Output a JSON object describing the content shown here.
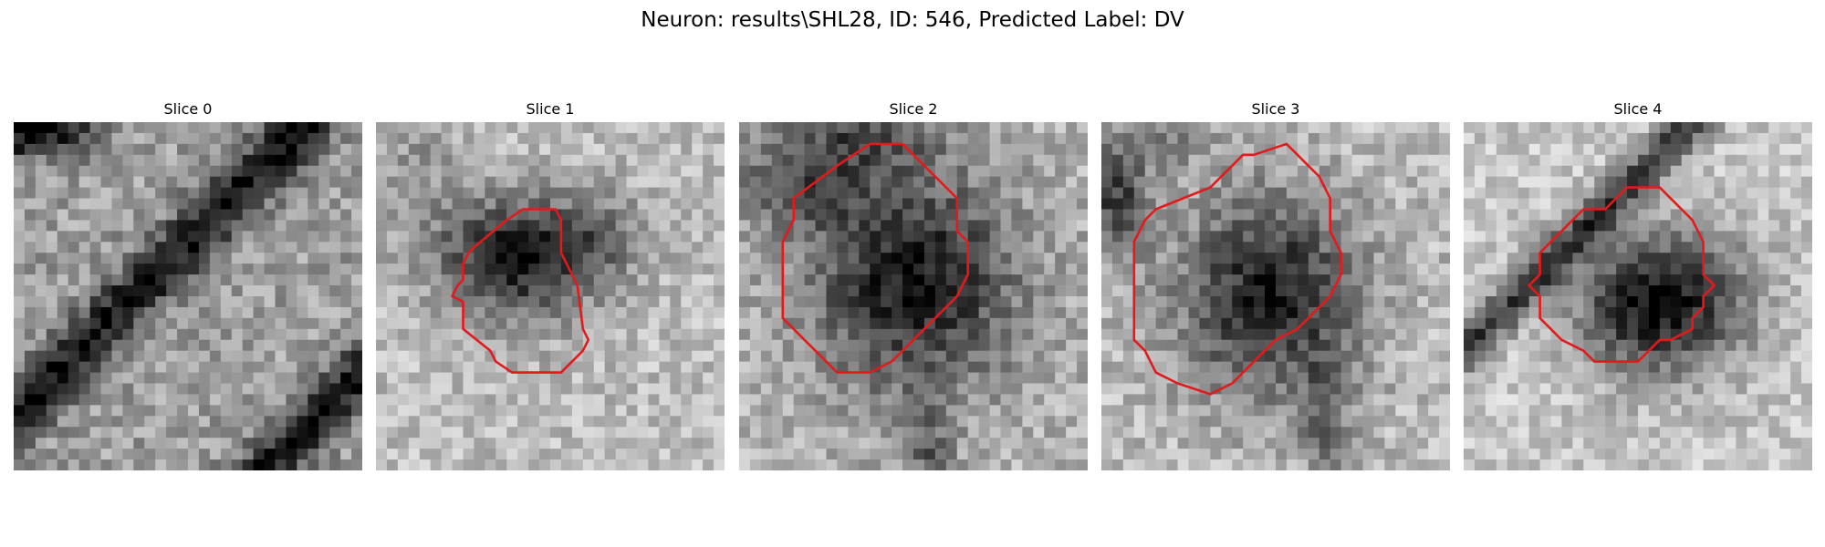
{
  "figure": {
    "title": "Neuron: results\\SHL28, ID: 546, Predicted Label: DV",
    "contour_color": "#e31a1c",
    "colormap": "gray",
    "grid_size": 32
  },
  "panels": [
    {
      "title": "Slice 0",
      "has_contour": false
    },
    {
      "title": "Slice 1",
      "has_contour": true
    },
    {
      "title": "Slice 2",
      "has_contour": true
    },
    {
      "title": "Slice 3",
      "has_contour": true
    },
    {
      "title": "Slice 4",
      "has_contour": true
    }
  ]
}
